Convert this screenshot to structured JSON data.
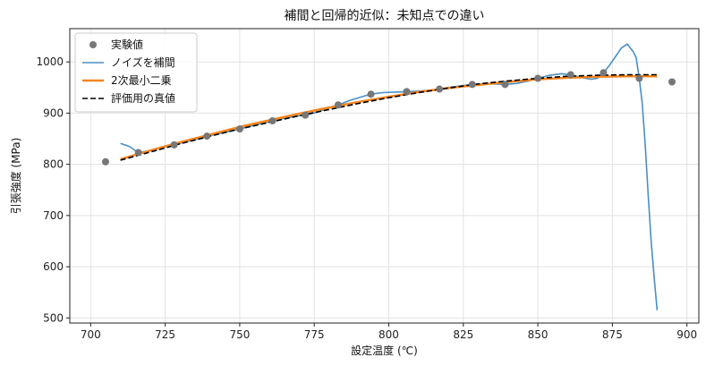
{
  "chart_data": {
    "type": "line",
    "title": "補間と回帰的近似：未知点での違い",
    "xlabel": "設定温度 (℃)",
    "ylabel": "引張強度 (MPa)",
    "xlim": [
      693,
      904
    ],
    "ylim": [
      490,
      1065
    ],
    "xticks": [
      700,
      725,
      750,
      775,
      800,
      825,
      850,
      875,
      900
    ],
    "yticks": [
      500,
      600,
      700,
      800,
      900,
      1000
    ],
    "grid": true,
    "legend_position": "top-left",
    "legend": [
      "実験値",
      "ノイズを補間",
      "2次最小二乗",
      "評価用の真値"
    ],
    "series": [
      {
        "name": "実験値",
        "kind": "scatter",
        "color": "#777777",
        "points": [
          [
            705,
            805
          ],
          [
            716,
            823
          ],
          [
            728,
            838
          ],
          [
            739,
            855
          ],
          [
            750,
            869
          ],
          [
            761,
            885
          ],
          [
            772,
            896
          ],
          [
            783,
            916
          ],
          [
            794,
            937
          ],
          [
            806,
            942
          ],
          [
            817,
            947
          ],
          [
            828,
            956
          ],
          [
            839,
            956
          ],
          [
            850,
            968
          ],
          [
            861,
            975
          ],
          [
            872,
            979
          ],
          [
            884,
            968
          ],
          [
            895,
            961
          ]
        ]
      },
      {
        "name": "ノイズを補間",
        "kind": "line",
        "color": "#4a8fc4",
        "points": [
          [
            710,
            841
          ],
          [
            713,
            835
          ],
          [
            716,
            823
          ],
          [
            720,
            827
          ],
          [
            724,
            833
          ],
          [
            728,
            838
          ],
          [
            732,
            844
          ],
          [
            736,
            850
          ],
          [
            739,
            855
          ],
          [
            743,
            860
          ],
          [
            747,
            865
          ],
          [
            750,
            869
          ],
          [
            754,
            875
          ],
          [
            758,
            881
          ],
          [
            761,
            885
          ],
          [
            765,
            890
          ],
          [
            769,
            894
          ],
          [
            772,
            896
          ],
          [
            776,
            902
          ],
          [
            780,
            910
          ],
          [
            783,
            916
          ],
          [
            787,
            925
          ],
          [
            791,
            932
          ],
          [
            794,
            937
          ],
          [
            798,
            940
          ],
          [
            802,
            941
          ],
          [
            806,
            942
          ],
          [
            810,
            943
          ],
          [
            814,
            945
          ],
          [
            817,
            947
          ],
          [
            821,
            951
          ],
          [
            825,
            954
          ],
          [
            828,
            956
          ],
          [
            832,
            957
          ],
          [
            836,
            957
          ],
          [
            839,
            956
          ],
          [
            843,
            958
          ],
          [
            847,
            963
          ],
          [
            850,
            968
          ],
          [
            854,
            974
          ],
          [
            858,
            977
          ],
          [
            861,
            975
          ],
          [
            865,
            969
          ],
          [
            868,
            966
          ],
          [
            870,
            968
          ],
          [
            872,
            979
          ],
          [
            874,
            993
          ],
          [
            876,
            1010
          ],
          [
            878,
            1027
          ],
          [
            880,
            1035
          ],
          [
            882,
            1020
          ],
          [
            883,
            1008
          ],
          [
            884,
            968
          ],
          [
            885,
            920
          ],
          [
            886,
            840
          ],
          [
            887,
            740
          ],
          [
            888,
            650
          ],
          [
            889,
            580
          ],
          [
            890,
            515
          ]
        ]
      },
      {
        "name": "2次最小二乗",
        "kind": "line",
        "color": "#f5851f",
        "points": [
          [
            710,
            810
          ],
          [
            720,
            827
          ],
          [
            730,
            843
          ],
          [
            740,
            858
          ],
          [
            750,
            873
          ],
          [
            760,
            886
          ],
          [
            770,
            899
          ],
          [
            780,
            911
          ],
          [
            790,
            922
          ],
          [
            800,
            932
          ],
          [
            810,
            941
          ],
          [
            820,
            949
          ],
          [
            830,
            955
          ],
          [
            840,
            961
          ],
          [
            850,
            966
          ],
          [
            860,
            969
          ],
          [
            870,
            971
          ],
          [
            880,
            972
          ],
          [
            890,
            972
          ]
        ]
      },
      {
        "name": "評価用の真値",
        "kind": "line-dashed",
        "color": "#000000",
        "points": [
          [
            710,
            808
          ],
          [
            720,
            824
          ],
          [
            730,
            840
          ],
          [
            740,
            855
          ],
          [
            750,
            869
          ],
          [
            760,
            882
          ],
          [
            770,
            895
          ],
          [
            780,
            907
          ],
          [
            790,
            919
          ],
          [
            800,
            930
          ],
          [
            810,
            940
          ],
          [
            820,
            949
          ],
          [
            830,
            957
          ],
          [
            840,
            963
          ],
          [
            850,
            968
          ],
          [
            860,
            972
          ],
          [
            870,
            974
          ],
          [
            880,
            975
          ],
          [
            890,
            975
          ]
        ]
      }
    ]
  }
}
